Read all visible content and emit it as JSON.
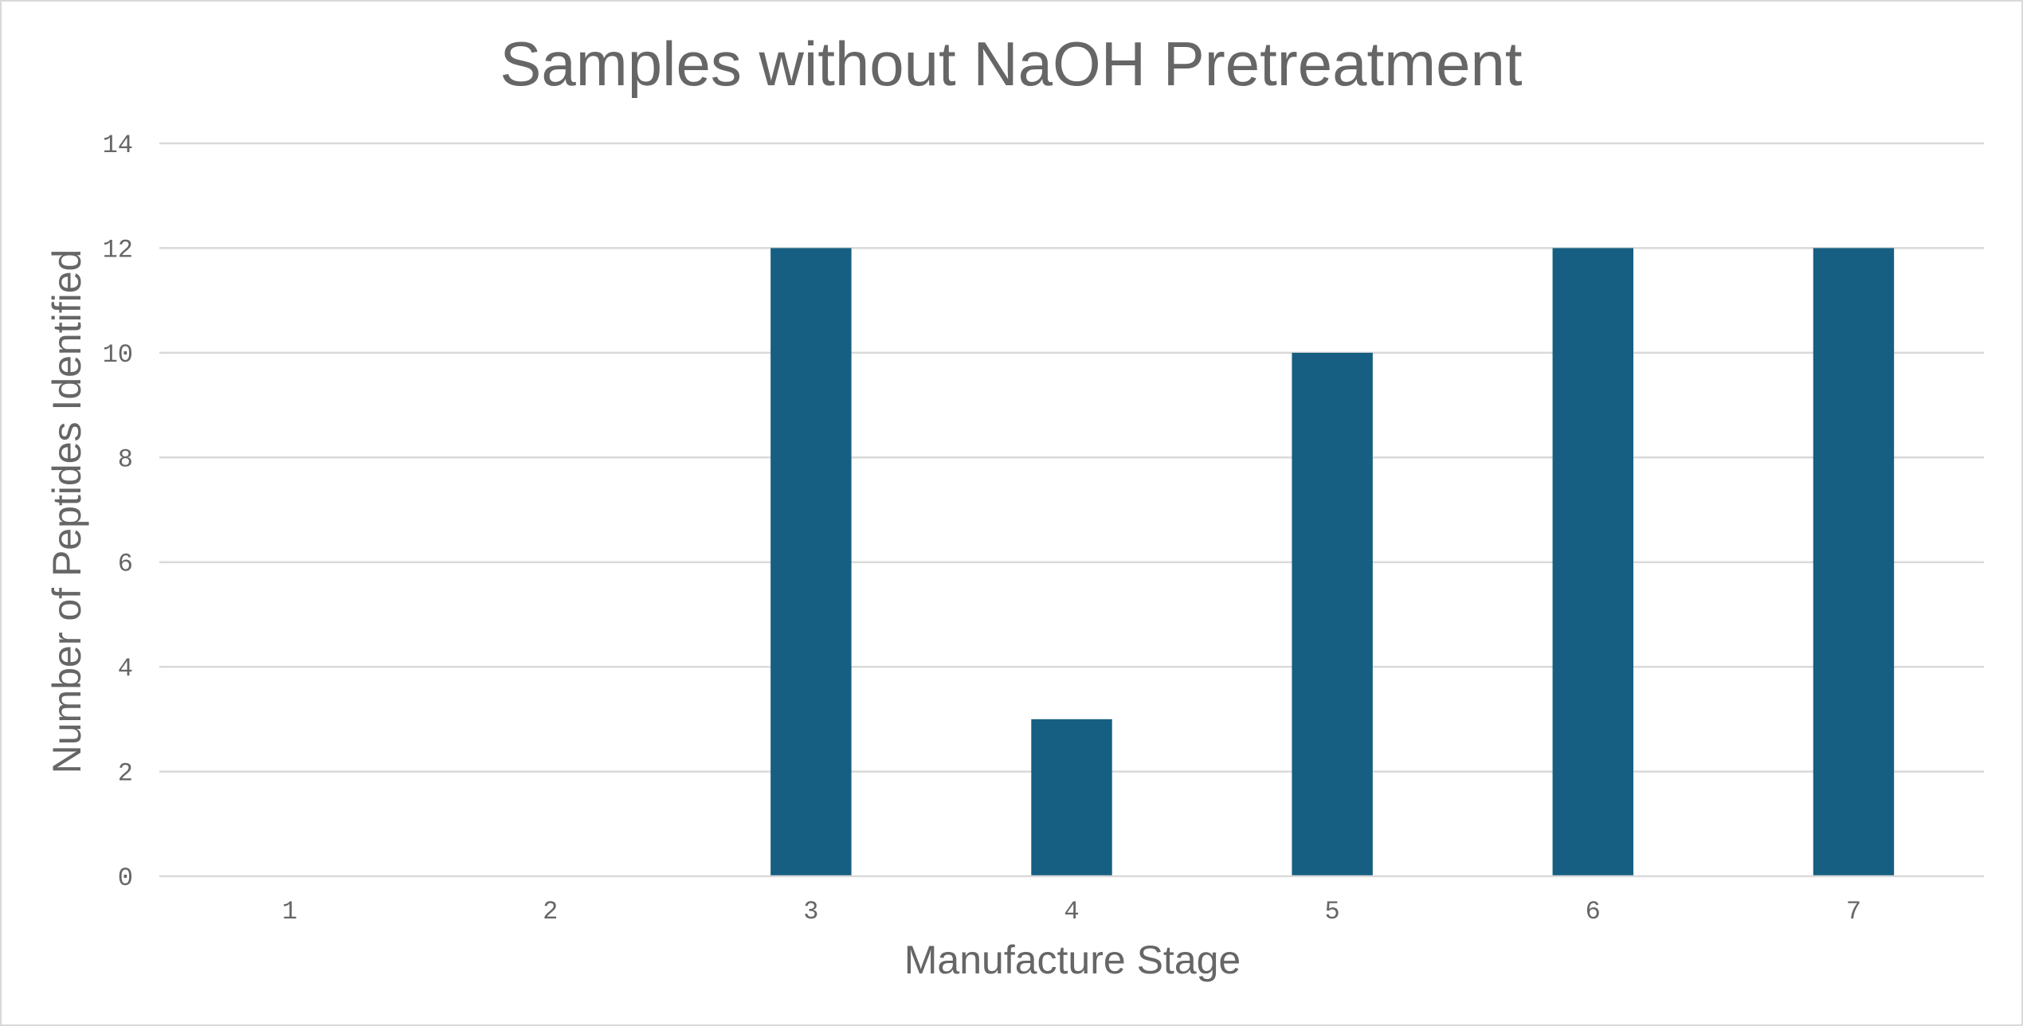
{
  "chart_data": {
    "type": "bar",
    "title": "Samples without NaOH Pretreatment",
    "xlabel": "Manufacture Stage",
    "ylabel": "Number of Peptides Identified",
    "categories": [
      "1",
      "2",
      "3",
      "4",
      "5",
      "6",
      "7"
    ],
    "values": [
      0,
      0,
      12,
      3,
      10,
      12,
      12
    ],
    "ylim": [
      0,
      14
    ],
    "yticks": [
      0,
      2,
      4,
      6,
      8,
      10,
      12,
      14
    ],
    "grid": true,
    "legend": "none",
    "bar_color": "#165f82",
    "grid_color": "#d9d9d9",
    "text_color": "#666666"
  }
}
